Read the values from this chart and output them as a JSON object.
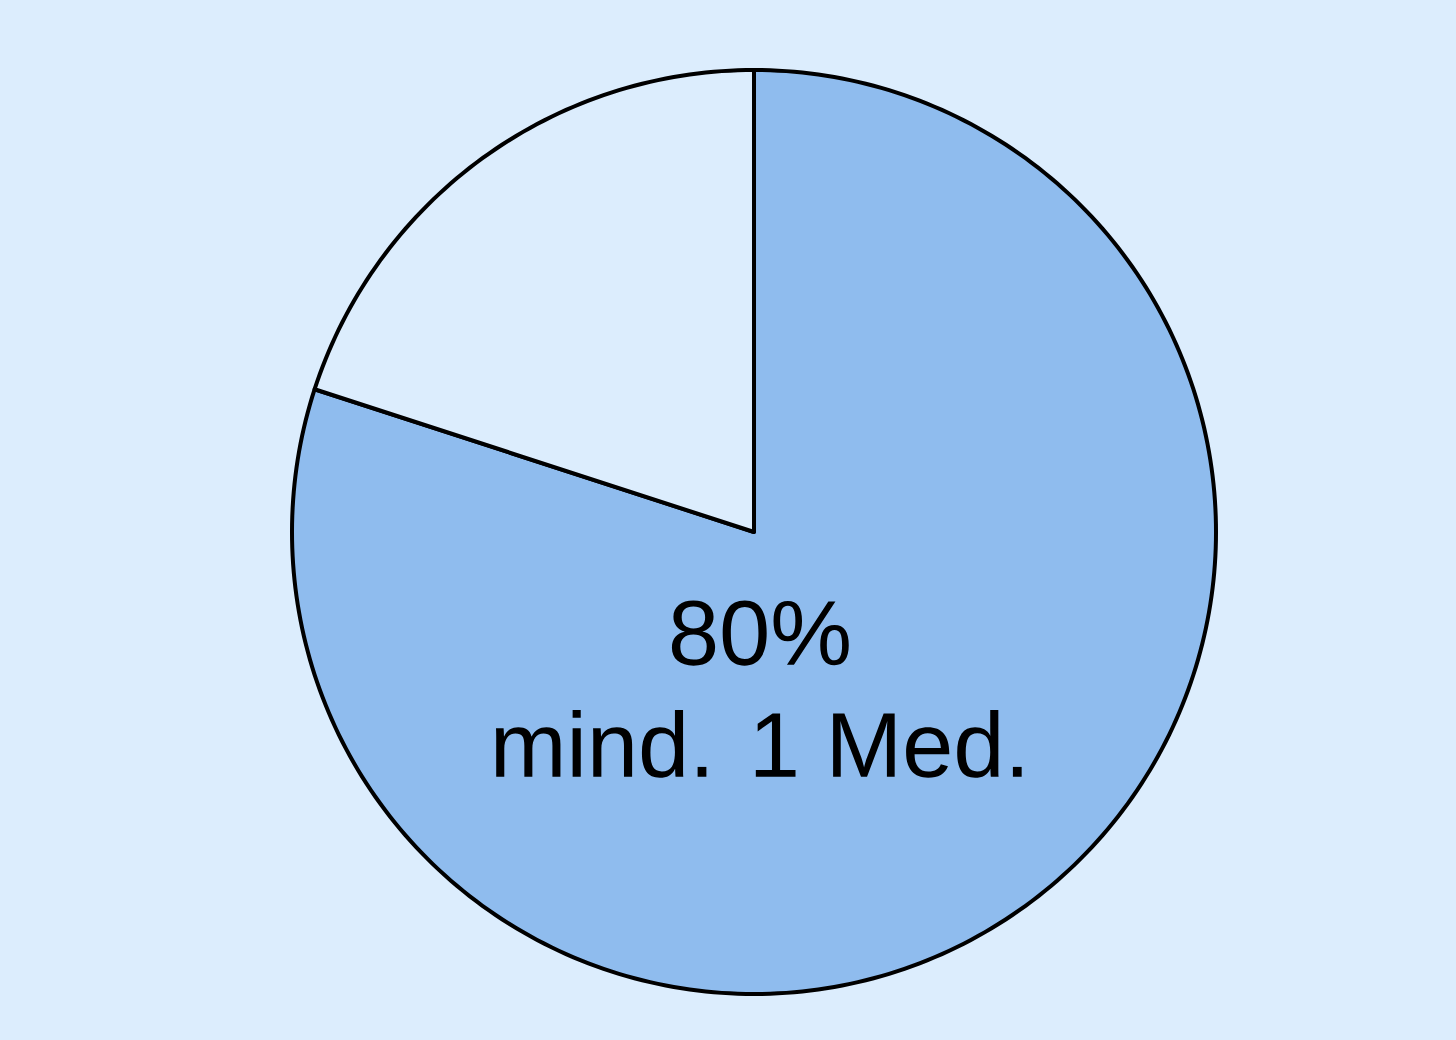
{
  "chart_data": {
    "type": "pie",
    "categories": [
      "mind. 1 Med.",
      null
    ],
    "values": [
      80,
      20
    ],
    "value_labels": [
      "80%",
      null
    ],
    "colors": [
      "#8fbcee",
      "#dcedfd"
    ]
  }
}
